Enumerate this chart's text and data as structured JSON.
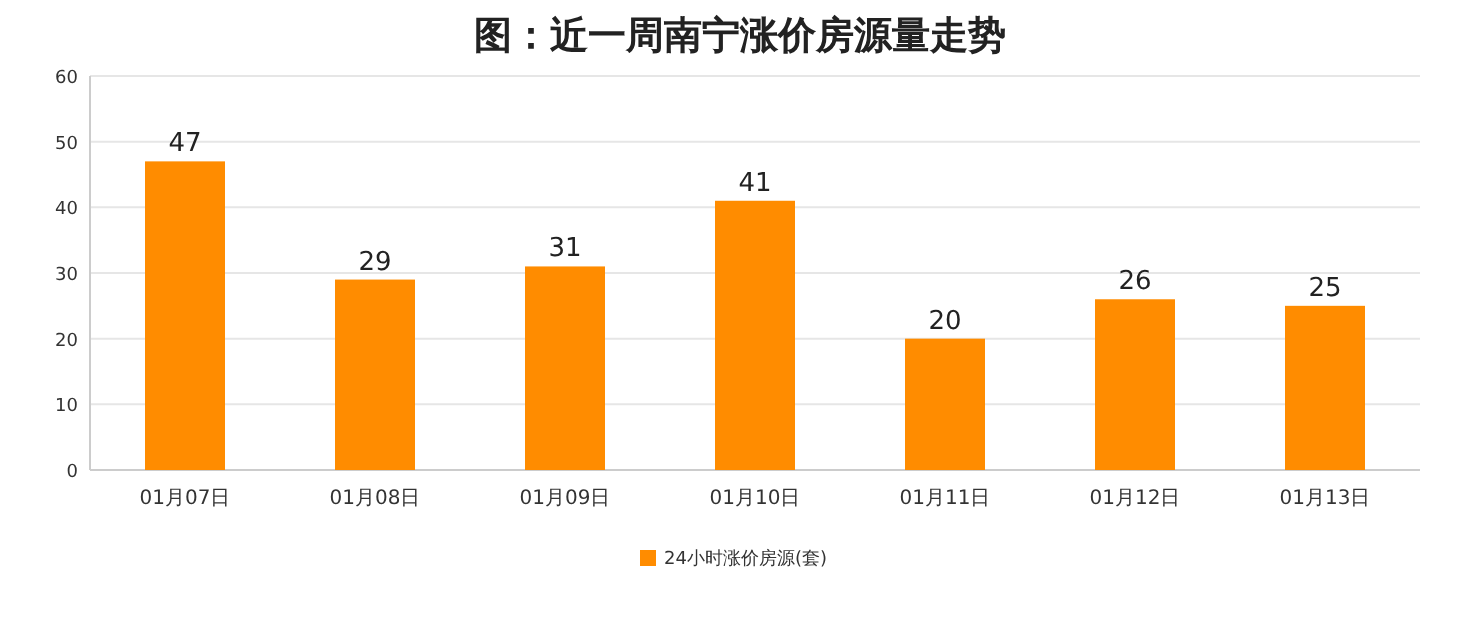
{
  "chart_data": {
    "type": "bar",
    "title": "图：近一周南宁涨价房源量走势",
    "categories": [
      "01月07日",
      "01月08日",
      "01月09日",
      "01月10日",
      "01月11日",
      "01月12日",
      "01月13日"
    ],
    "series": [
      {
        "name": "24小时涨价房源(套)",
        "color": "#ff8c00",
        "values": [
          47,
          29,
          31,
          41,
          20,
          26,
          25
        ]
      }
    ],
    "ylim": [
      0,
      60
    ],
    "yticks": [
      0,
      10,
      20,
      30,
      40,
      50,
      60
    ],
    "grid": "y",
    "legend": "bottom",
    "data_labels": true
  }
}
